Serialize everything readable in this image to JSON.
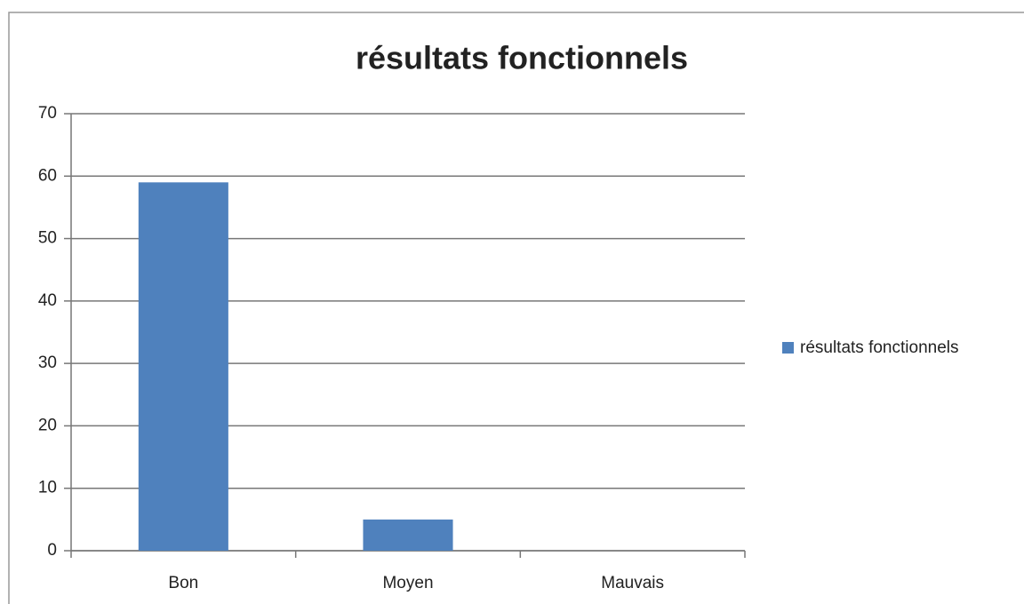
{
  "chart_data": {
    "type": "bar",
    "title": "résultats fonctionnels",
    "categories": [
      "Bon",
      "Moyen",
      "Mauvais"
    ],
    "series": [
      {
        "name": "résultats fonctionnels",
        "color": "#4f81bd",
        "values": [
          59,
          5,
          0
        ]
      }
    ],
    "ylim": [
      0,
      70
    ],
    "yticks": [
      0,
      10,
      20,
      30,
      40,
      50,
      60,
      70
    ],
    "grid": true,
    "legend": "right"
  }
}
